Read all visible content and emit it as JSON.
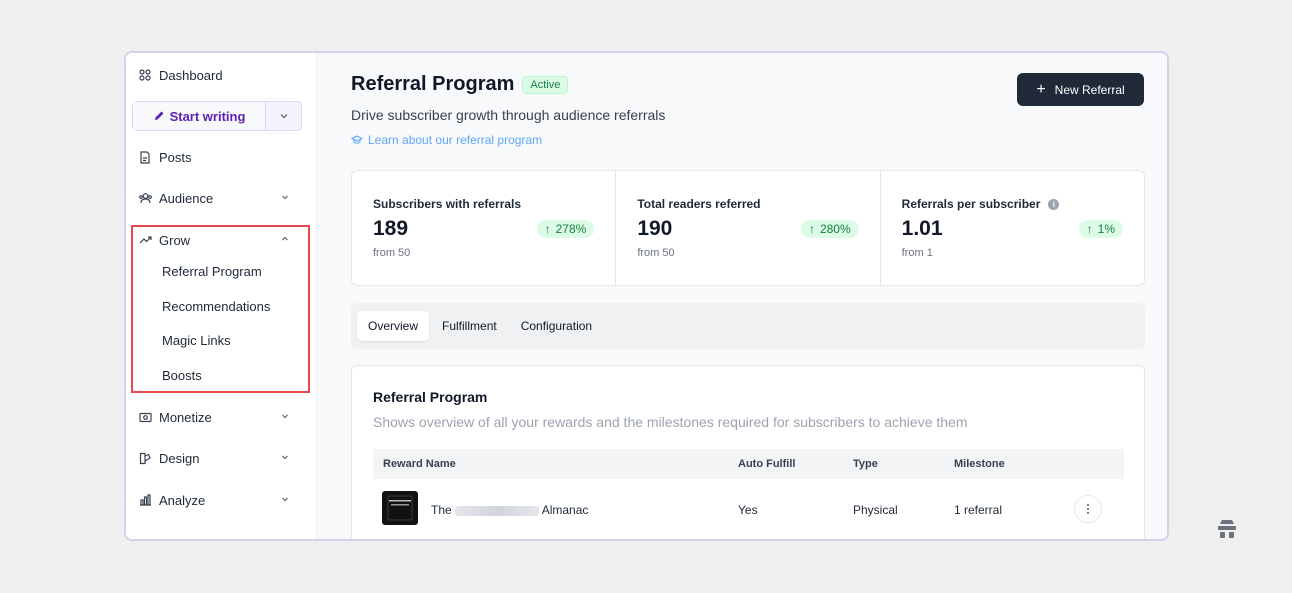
{
  "sidebar": {
    "dashboard": "Dashboard",
    "start_writing": "Start writing",
    "posts": "Posts",
    "audience": "Audience",
    "grow": "Grow",
    "grow_items": [
      "Referral Program",
      "Recommendations",
      "Magic Links",
      "Boosts"
    ],
    "monetize": "Monetize",
    "design": "Design",
    "analyze": "Analyze"
  },
  "header": {
    "title": "Referral Program",
    "status": "Active",
    "subtitle": "Drive subscriber growth through audience referrals",
    "learn_link": "Learn about our referral program",
    "new_button": "New Referral"
  },
  "stats": [
    {
      "label": "Subscribers with referrals",
      "value": "189",
      "delta": "278%",
      "from": "from 50"
    },
    {
      "label": "Total readers referred",
      "value": "190",
      "delta": "280%",
      "from": "from 50"
    },
    {
      "label": "Referrals per subscriber",
      "value": "1.01",
      "delta": "1%",
      "from": "from 1"
    }
  ],
  "tabs": [
    "Overview",
    "Fulfillment",
    "Configuration"
  ],
  "panel": {
    "title": "Referral Program",
    "description": "Shows overview of all your rewards and the milestones required for subscribers to achieve them",
    "columns": [
      "Reward Name",
      "Auto Fulfill",
      "Type",
      "Milestone"
    ],
    "rows": [
      {
        "name_prefix": "The",
        "name_suffix": "Almanac",
        "auto_fulfill": "Yes",
        "type": "Physical",
        "milestone": "1 referral"
      }
    ]
  },
  "colors": {
    "accent_purple": "#5b21b6",
    "highlight_red": "#e5484d",
    "success_green": "#15803d",
    "primary_dark": "#1f2937"
  }
}
